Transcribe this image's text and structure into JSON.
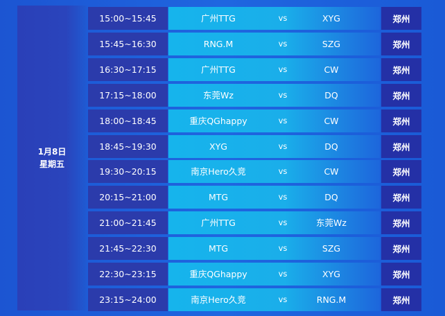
{
  "date": {
    "day": "1月8日",
    "weekday": "星期五"
  },
  "vs_label": "vs",
  "matches": [
    {
      "time": "15:00~15:45",
      "team1": "广州TTG",
      "team2": "XYG",
      "venue": "郑州"
    },
    {
      "time": "15:45~16:30",
      "team1": "RNG.M",
      "team2": "SZG",
      "venue": "郑州"
    },
    {
      "time": "16:30~17:15",
      "team1": "广州TTG",
      "team2": "CW",
      "venue": "郑州"
    },
    {
      "time": "17:15~18:00",
      "team1": "东莞Wz",
      "team2": "DQ",
      "venue": "郑州"
    },
    {
      "time": "18:00~18:45",
      "team1": "重庆QGhappy",
      "team2": "CW",
      "venue": "郑州"
    },
    {
      "time": "18:45~19:30",
      "team1": "XYG",
      "team2": "DQ",
      "venue": "郑州"
    },
    {
      "time": "19:30~20:15",
      "team1": "南京Hero久竞",
      "team2": "CW",
      "venue": "郑州"
    },
    {
      "time": "20:15~21:00",
      "team1": "MTG",
      "team2": "DQ",
      "venue": "郑州"
    },
    {
      "time": "21:00~21:45",
      "team1": "广州TTG",
      "team2": "东莞Wz",
      "venue": "郑州"
    },
    {
      "time": "21:45~22:30",
      "team1": "MTG",
      "team2": "SZG",
      "venue": "郑州"
    },
    {
      "time": "22:30~23:15",
      "team1": "重庆QGhappy",
      "team2": "XYG",
      "venue": "郑州"
    },
    {
      "time": "23:15~24:00",
      "team1": "南京Hero久竞",
      "team2": "RNG.M",
      "venue": "郑州"
    }
  ]
}
